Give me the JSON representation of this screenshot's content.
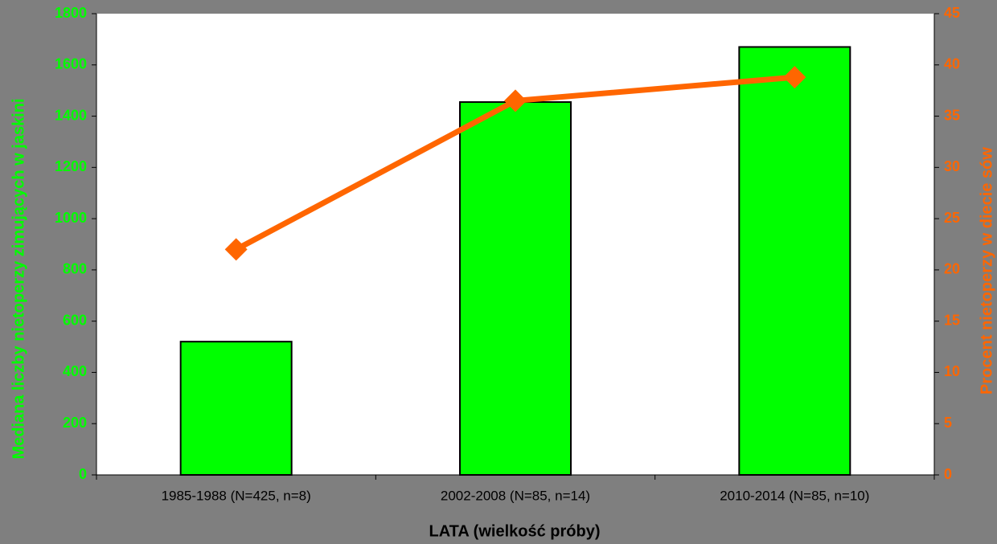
{
  "chart_data": {
    "type": "bar",
    "categories": [
      "1985-1988 (N=425, n=8)",
      "2002-2008 (N=85, n=14)",
      "2010-2014 (N=85, n=10)"
    ],
    "xlabel": "LATA (wielkość próby)",
    "ylabel": "Mediana liczby nietoperzy zimujących w jaskini",
    "y2label": "Procent nietoperzy w diecie sów",
    "ylim": [
      0,
      1800
    ],
    "yticks": [
      0,
      200,
      400,
      600,
      800,
      1000,
      1200,
      1400,
      1600,
      1800
    ],
    "y2lim": [
      0,
      45
    ],
    "y2ticks": [
      0,
      5,
      10,
      15,
      20,
      25,
      30,
      35,
      40,
      45
    ],
    "series": [
      {
        "type": "bar",
        "color": "#00ff00",
        "values": [
          520,
          1455,
          1670
        ]
      },
      {
        "type": "line",
        "axis": "y2",
        "color": "#ff6600",
        "values": [
          22,
          36.5,
          38.8
        ]
      }
    ]
  }
}
